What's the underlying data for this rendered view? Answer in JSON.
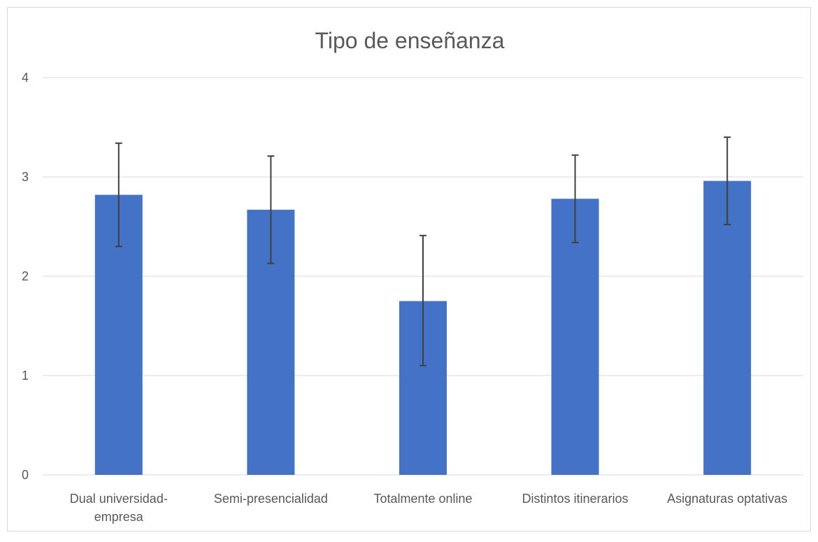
{
  "chart_data": {
    "type": "bar",
    "title": "Tipo de enseñanza",
    "categories": [
      [
        "Dual universidad-",
        "empresa"
      ],
      [
        "Semi-presencialidad"
      ],
      [
        "Totalmente online"
      ],
      [
        "Distintos itinerarios"
      ],
      [
        "Asignaturas optativas"
      ]
    ],
    "values": [
      2.82,
      2.67,
      1.75,
      2.78,
      2.96
    ],
    "error_low": [
      2.3,
      2.13,
      1.1,
      2.34,
      2.52
    ],
    "error_high": [
      3.34,
      3.21,
      2.41,
      3.22,
      3.4
    ],
    "yticks": [
      "0",
      "1",
      "2",
      "3",
      "4"
    ],
    "ylim": [
      0,
      4
    ],
    "grid": true,
    "colors": {
      "bar": "#4472c4",
      "grid": "#d9d9d9",
      "error": "#404040"
    }
  }
}
